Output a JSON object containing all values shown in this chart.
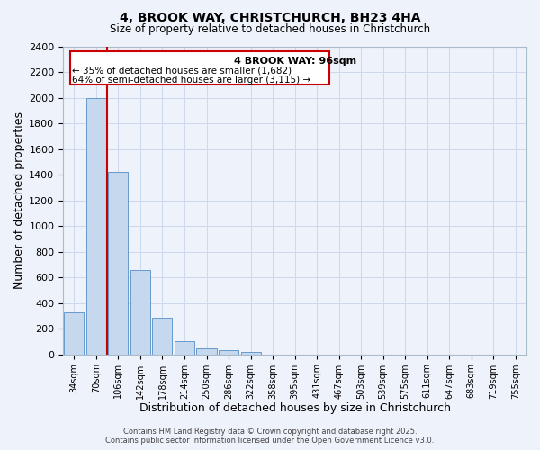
{
  "title1": "4, BROOK WAY, CHRISTCHURCH, BH23 4HA",
  "title2": "Size of property relative to detached houses in Christchurch",
  "xlabel": "Distribution of detached houses by size in Christchurch",
  "ylabel": "Number of detached properties",
  "bar_labels": [
    "34sqm",
    "70sqm",
    "106sqm",
    "142sqm",
    "178sqm",
    "214sqm",
    "250sqm",
    "286sqm",
    "322sqm",
    "358sqm",
    "395sqm",
    "431sqm",
    "467sqm",
    "503sqm",
    "539sqm",
    "575sqm",
    "611sqm",
    "647sqm",
    "683sqm",
    "719sqm",
    "755sqm"
  ],
  "bar_values": [
    325,
    2000,
    1420,
    660,
    285,
    100,
    45,
    30,
    18,
    0,
    0,
    0,
    0,
    0,
    0,
    0,
    0,
    0,
    0,
    0,
    0
  ],
  "bar_color": "#c5d8ed",
  "bar_edge_color": "#6699cc",
  "vline_x": 1.5,
  "vline_color": "#cc0000",
  "ylim": [
    0,
    2400
  ],
  "yticks": [
    0,
    200,
    400,
    600,
    800,
    1000,
    1200,
    1400,
    1600,
    1800,
    2000,
    2200,
    2400
  ],
  "annotation_title": "4 BROOK WAY: 96sqm",
  "annotation_line1": "← 35% of detached houses are smaller (1,682)",
  "annotation_line2": "64% of semi-detached houses are larger (3,115) →",
  "annotation_box_color": "#ffffff",
  "annotation_box_edge": "#cc0000",
  "footer1": "Contains HM Land Registry data © Crown copyright and database right 2025.",
  "footer2": "Contains public sector information licensed under the Open Government Licence v3.0.",
  "grid_color": "#ccd8ec",
  "bg_color": "#eef2fa"
}
